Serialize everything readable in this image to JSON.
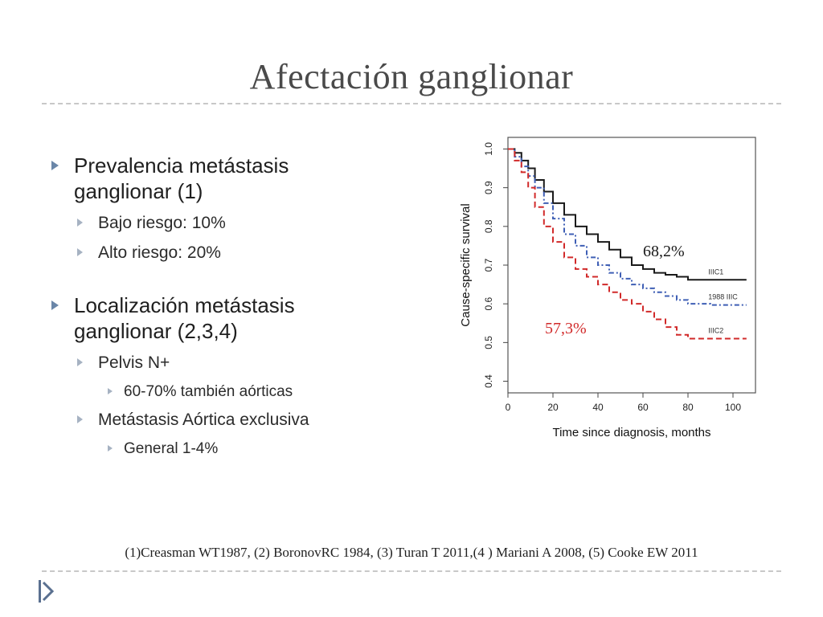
{
  "title": "Afectación ganglionar",
  "bullets": {
    "b1": "Prevalencia metástasis ganglionar (1)",
    "b1_1": "Bajo riesgo: 10%",
    "b1_2": "Alto riesgo: 20%",
    "b2": "Localización metástasis ganglionar (2,3,4)",
    "b2_1": "Pelvis N+",
    "b2_1_1": "60-70% también aórticas",
    "b2_2": "Metástasis Aórtica exclusiva",
    "b2_2_1": "General 1-4%"
  },
  "footnote": "(1)Creasman WT1987, (2) BoronovRC 1984, (3) Turan T 2011,(4 ) Mariani A 2008, (5) Cooke EW 2011",
  "annotations": {
    "upper": "68,2%",
    "lower": "57,3%",
    "upper_color": "#1a1a1a",
    "lower_color": "#d12a2a"
  },
  "chart_data": {
    "type": "line",
    "xlabel": "Time since diagnosis, months",
    "ylabel": "Cause-specific survival",
    "xlim": [
      0,
      110
    ],
    "ylim": [
      0.37,
      1.03
    ],
    "xticks": [
      0,
      20,
      40,
      60,
      80,
      100
    ],
    "yticks": [
      0.4,
      0.5,
      0.6,
      0.7,
      0.8,
      0.9,
      1.0
    ],
    "xtick_labels": [
      "0",
      "20",
      "40",
      "60",
      "80",
      "100"
    ],
    "ytick_labels": [
      "0.4",
      "0.5",
      "0.6",
      "0.7",
      "0.8",
      "0.9",
      "1.0"
    ],
    "grid": false,
    "series": [
      {
        "name": "IIIC1",
        "color": "#1a1a1a",
        "style": "solid",
        "x": [
          0,
          3,
          6,
          9,
          12,
          16,
          20,
          25,
          30,
          35,
          40,
          45,
          50,
          55,
          60,
          65,
          70,
          75,
          80,
          90,
          100,
          106
        ],
        "y": [
          1.0,
          0.99,
          0.97,
          0.95,
          0.92,
          0.89,
          0.86,
          0.83,
          0.8,
          0.78,
          0.76,
          0.74,
          0.72,
          0.7,
          0.69,
          0.68,
          0.675,
          0.67,
          0.662,
          0.662,
          0.662,
          0.662
        ]
      },
      {
        "name": "1988 IIIC",
        "color": "#3f5fb5",
        "style": "dashdot",
        "x": [
          0,
          3,
          6,
          9,
          12,
          16,
          20,
          25,
          30,
          35,
          40,
          45,
          50,
          55,
          60,
          65,
          70,
          75,
          80,
          90,
          100,
          106
        ],
        "y": [
          1.0,
          0.98,
          0.955,
          0.93,
          0.9,
          0.86,
          0.82,
          0.78,
          0.75,
          0.72,
          0.7,
          0.68,
          0.665,
          0.65,
          0.64,
          0.63,
          0.62,
          0.61,
          0.6,
          0.597,
          0.597,
          0.597
        ]
      },
      {
        "name": "IIIC2",
        "color": "#d12a2a",
        "style": "dashed",
        "x": [
          0,
          3,
          6,
          9,
          12,
          16,
          20,
          25,
          30,
          35,
          40,
          45,
          50,
          55,
          60,
          65,
          70,
          75,
          80,
          90,
          100,
          106
        ],
        "y": [
          1.0,
          0.97,
          0.94,
          0.9,
          0.85,
          0.8,
          0.76,
          0.72,
          0.69,
          0.67,
          0.65,
          0.63,
          0.61,
          0.6,
          0.58,
          0.56,
          0.54,
          0.52,
          0.51,
          0.51,
          0.51,
          0.51
        ]
      }
    ]
  }
}
